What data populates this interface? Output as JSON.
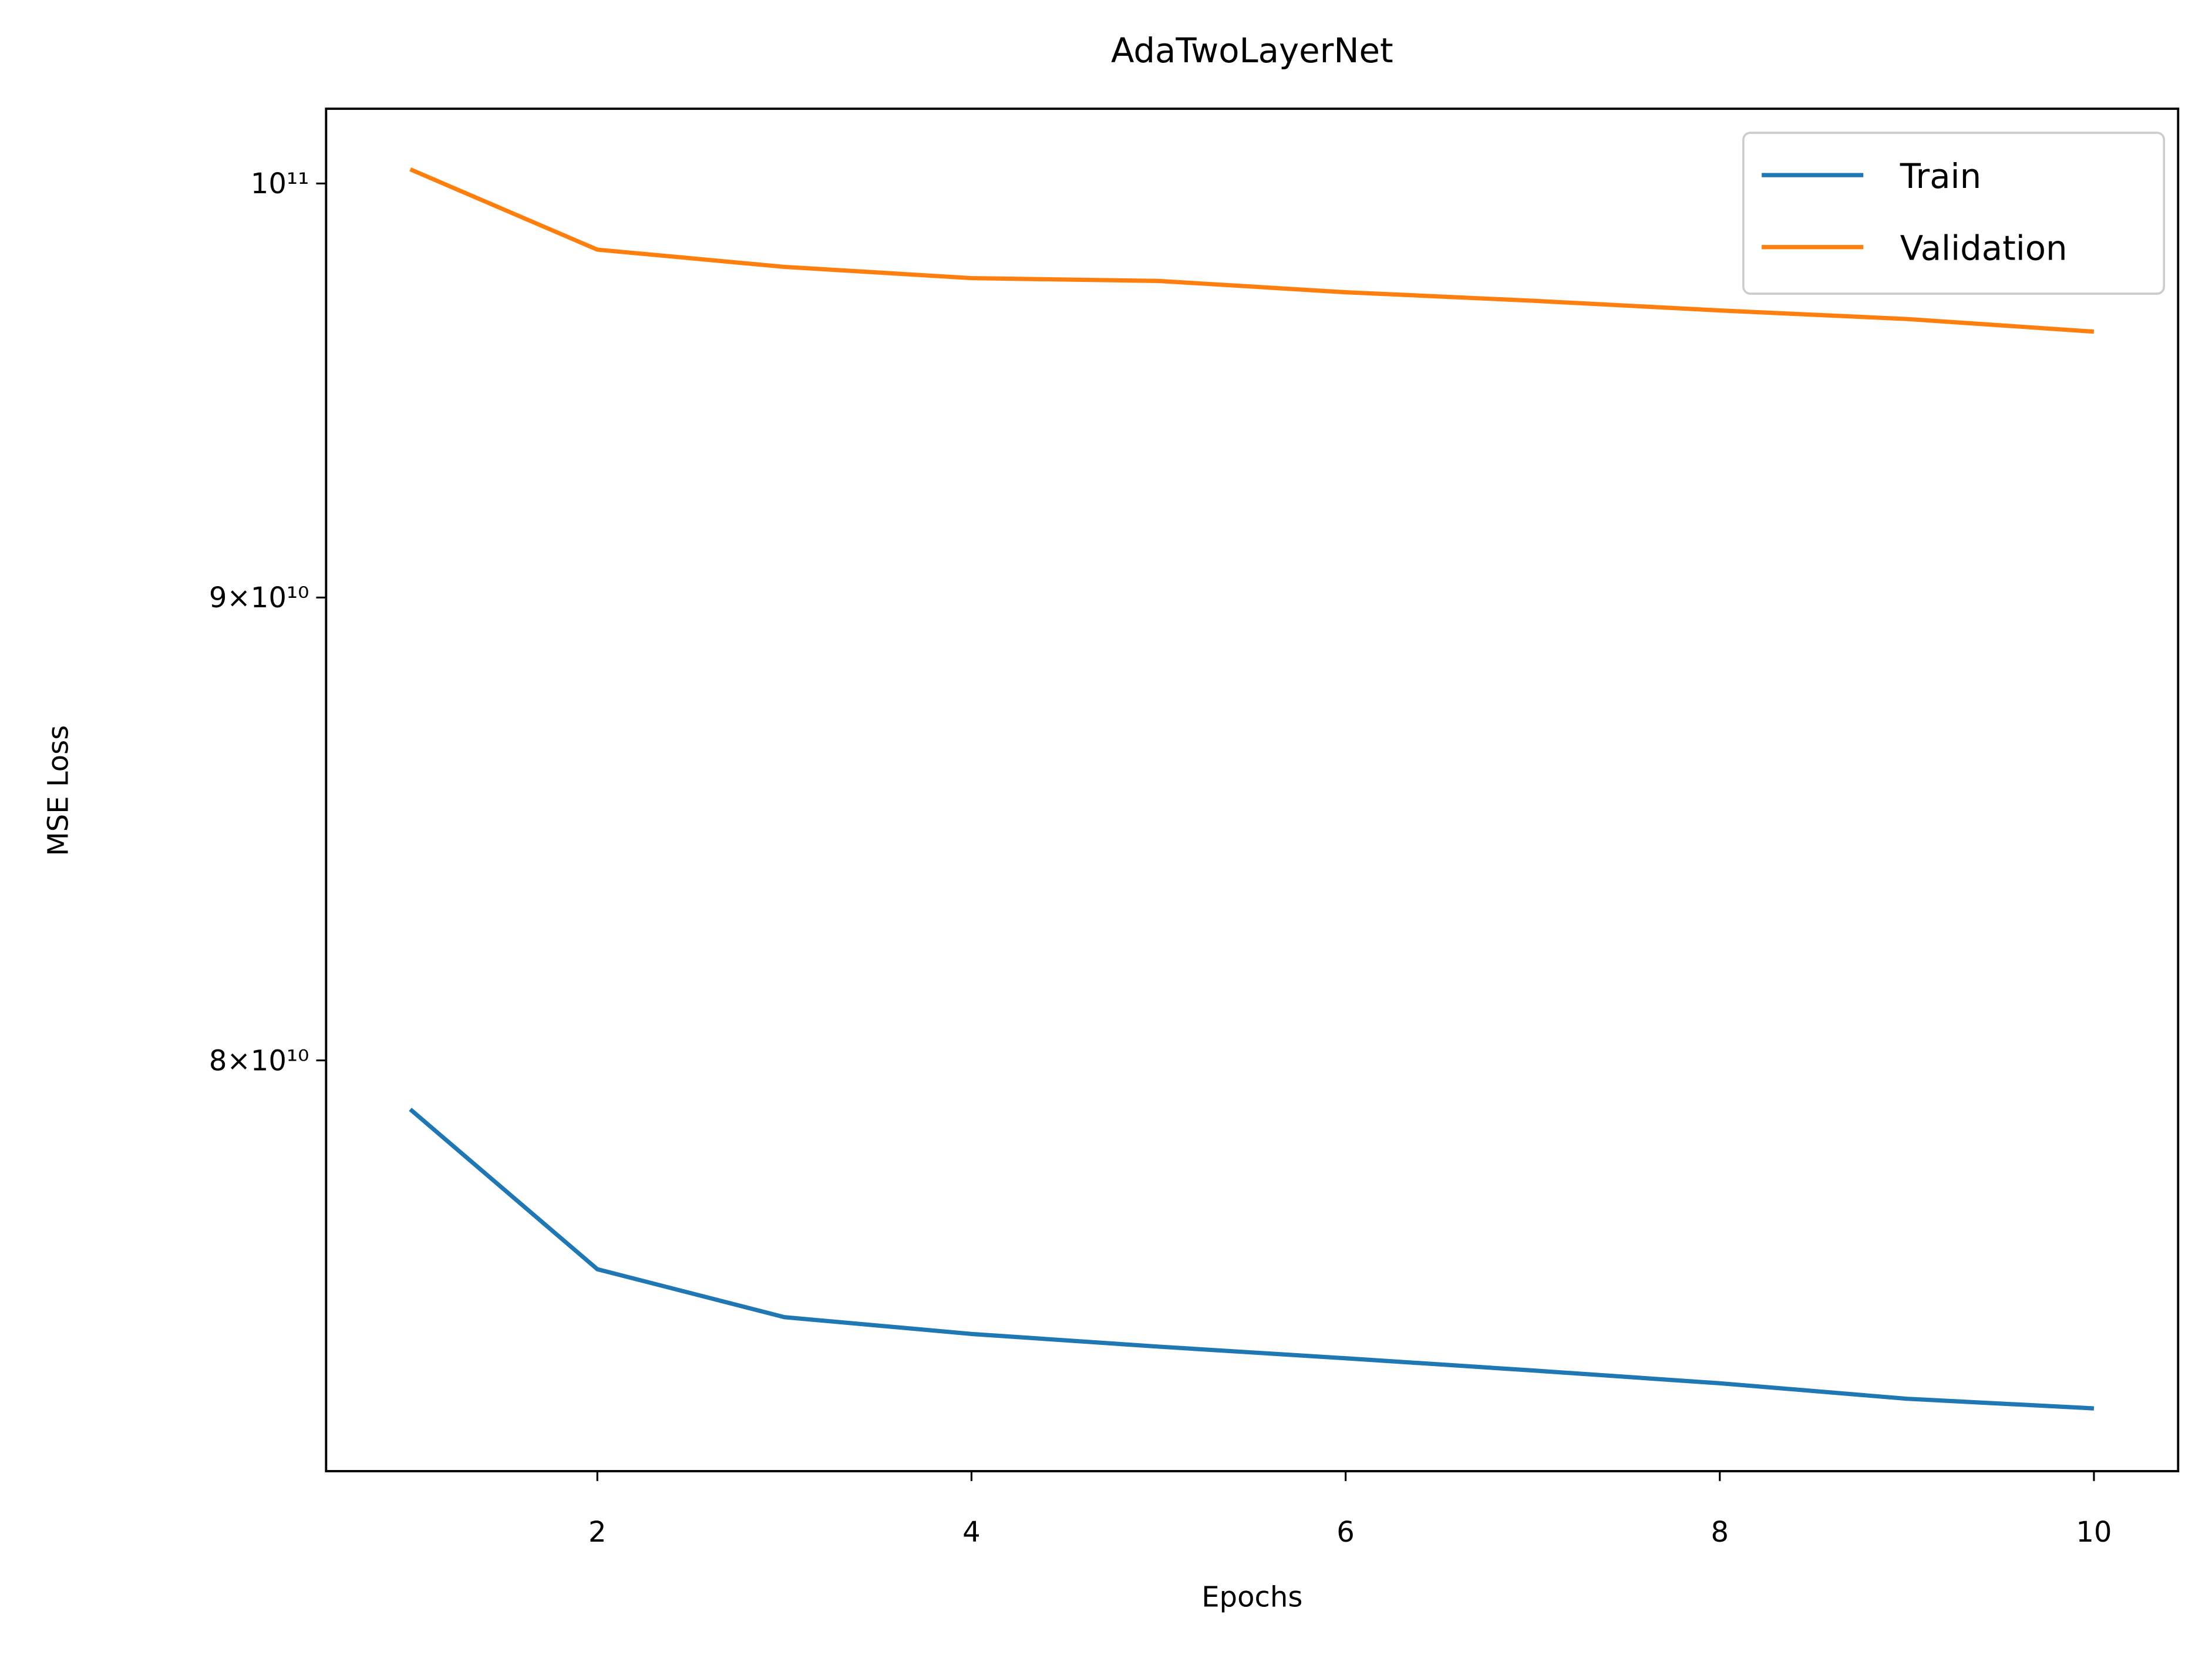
{
  "chart_data": {
    "type": "line",
    "title": "AdaTwoLayerNet",
    "x_label": "Epochs",
    "y_label": "MSE Loss",
    "x": [
      1,
      2,
      3,
      4,
      5,
      6,
      7,
      8,
      9,
      10
    ],
    "series": [
      {
        "name": "Train",
        "color": "#1f77b4",
        "values": [
          79010000000,
          75860000000,
          74940000000,
          74620000000,
          74380000000,
          74160000000,
          73930000000,
          73690000000,
          73400000000,
          73220000000
        ]
      },
      {
        "name": "Validation",
        "color": "#ff7f0e",
        "values": [
          100360000000,
          98330000000,
          97900000000,
          97620000000,
          97550000000,
          97270000000,
          97060000000,
          96820000000,
          96610000000,
          96300000000
        ]
      }
    ],
    "xlim": [
      0.55,
      10.45
    ],
    "ylim": [
      72060000000,
      101920000000
    ],
    "xticks": [
      2,
      4,
      6,
      8,
      10
    ],
    "yticks": [
      {
        "value": 80000000000,
        "label": "8×10¹⁰"
      },
      {
        "value": 90000000000,
        "label": "9×10¹⁰"
      },
      {
        "value": 100000000000,
        "label": "10¹¹"
      }
    ],
    "yscale": "log",
    "grid": false,
    "legend": "upper right"
  }
}
